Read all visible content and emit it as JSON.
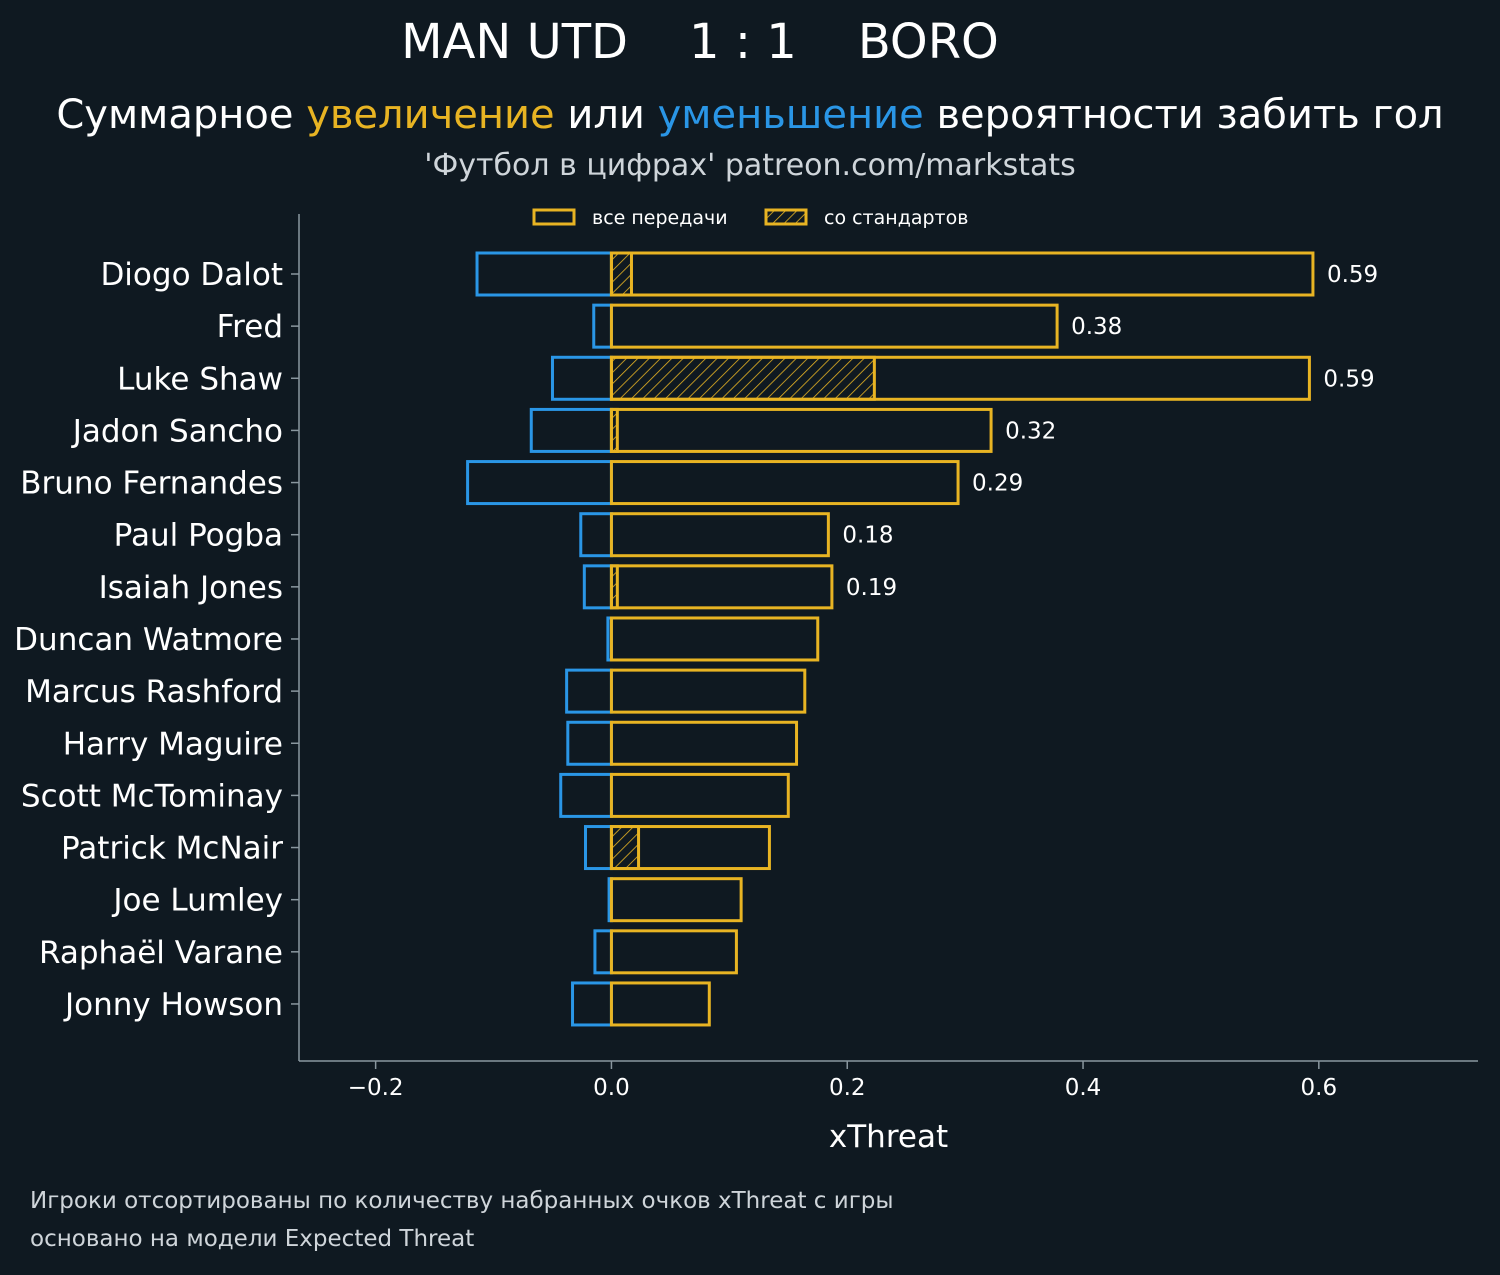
{
  "header": {
    "title": "MAN UTD    1 : 1    BORO",
    "subtitle_parts": [
      {
        "text": "Суммарное ",
        "tone": "plain"
      },
      {
        "text": "увеличение",
        "tone": "warm"
      },
      {
        "text": " или ",
        "tone": "plain"
      },
      {
        "text": "уменьшение",
        "tone": "cool"
      },
      {
        "text": " вероятности забить гол",
        "tone": "plain"
      }
    ],
    "source": "'Футбол в цифрах' patreon.com/markstats"
  },
  "footer": {
    "line1": "Игроки отсортированы по количеству набранных очков xThreat с игры",
    "line2": "основано на модели Expected Threat"
  },
  "colors": {
    "background": "#0f1921",
    "positive": "#e8b423",
    "negative": "#2a96e6",
    "axis": "#8a979f",
    "text": "#ffffff"
  },
  "chart_data": {
    "type": "bar",
    "orientation": "horizontal",
    "xlabel": "xThreat",
    "xlim": [
      -0.265,
      0.735
    ],
    "xticks": [
      -0.2,
      0.0,
      0.2,
      0.4,
      0.6
    ],
    "xtick_labels": [
      "−0.2",
      "0.0",
      "0.2",
      "0.4",
      "0.6"
    ],
    "legend": {
      "placement": "top-center",
      "entries": [
        "все передачи",
        "со стандартов"
      ]
    },
    "categories": [
      "Diogo Dalot",
      "Fred",
      "Luke Shaw",
      "Jadon Sancho",
      "Bruno Fernandes",
      "Paul Pogba",
      "Isaiah Jones",
      "Duncan Watmore",
      "Marcus Rashford",
      "Harry Maguire",
      "Scott McTominay",
      "Patrick McNair",
      "Joe Lumley",
      "Raphaël Varane",
      "Jonny Howson"
    ],
    "series": [
      {
        "name": "все передачи",
        "kind": "positive",
        "values": [
          0.595,
          0.378,
          0.592,
          0.322,
          0.294,
          0.184,
          0.187,
          0.175,
          0.164,
          0.157,
          0.15,
          0.134,
          0.11,
          0.106,
          0.083
        ]
      },
      {
        "name": "со стандартов",
        "kind": "set_pieces",
        "values": [
          0.017,
          0.0,
          0.223,
          0.005,
          0.0,
          0.0,
          0.005,
          0.0,
          0.0,
          0.0,
          0.0,
          0.023,
          0.0,
          0.0,
          0.0
        ]
      },
      {
        "name": "уменьшение",
        "kind": "negative",
        "values": [
          -0.114,
          -0.015,
          -0.05,
          -0.068,
          -0.122,
          -0.026,
          -0.023,
          -0.003,
          -0.038,
          -0.037,
          -0.043,
          -0.022,
          -0.002,
          -0.014,
          -0.033
        ]
      }
    ],
    "value_labels": [
      "0.59",
      "0.38",
      "0.59",
      "0.32",
      "0.29",
      "0.18",
      "0.19",
      "",
      "",
      "",
      "",
      "",
      "",
      "",
      ""
    ]
  }
}
